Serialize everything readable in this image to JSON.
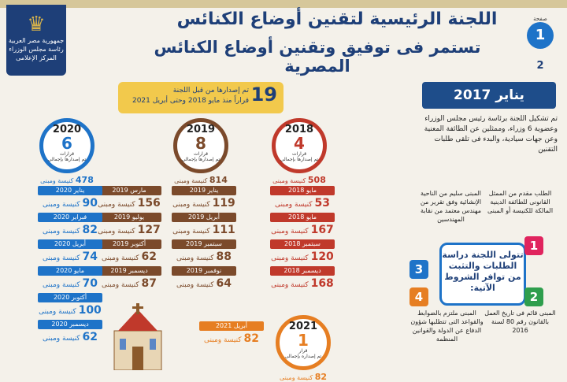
{
  "header": {
    "title_line1": "اللجنة الرئيسية لتقنين أوضاع الكنائس",
    "title_line2": "تستمر فى توفيق وتقنين أوضاع الكنائس المصرية",
    "badge_number": "1",
    "badge_label": "صفحة",
    "badge_page2": "2",
    "logo_line1": "جمهورية مصر العربية",
    "logo_line2": "رئاسة مجلس الوزراء",
    "logo_line3": "المركز الإعلامى"
  },
  "january": {
    "heading": "يناير 2017",
    "text": "تم تشكيل اللجنة برئاسة رئيس مجلس الوزراء وعضوية 6 وزراء، وممثلين عن الطائفة المعنية وعن جهات سيادية، والبدء فى تلقى طلبات التقنين"
  },
  "summary": {
    "number": "19",
    "unit": "قراراً",
    "line1": "تم إصدارها من قبل اللجنة",
    "line2": "منذ مايو 2018 وحتى أبريل 2021"
  },
  "years": [
    {
      "year": "2018",
      "count": "4",
      "unit": "قرارات",
      "caption": "تم إصدارها بإجمالى",
      "total": "508",
      "total_label": "كنيسة ومبنى",
      "color": "#c0392b",
      "months": [
        {
          "m": "مايو 2018",
          "v": "53"
        },
        {
          "m": "مايو 2018",
          "v": "167"
        },
        {
          "m": "سبتمبر 2018",
          "v": "120"
        },
        {
          "m": "ديسمبر 2018",
          "v": "168"
        }
      ]
    },
    {
      "year": "2019",
      "count": "8",
      "unit": "قرارات",
      "caption": "تم إصدارها بإجمالى",
      "total": "814",
      "total_label": "كنيسة ومبنى",
      "color": "#7b4a2b",
      "months": [
        {
          "m": "يناير 2019",
          "v": "119"
        },
        {
          "m": "أبريل 2019",
          "v": "111"
        },
        {
          "m": "سبتمبر 2019",
          "v": "88"
        },
        {
          "m": "نوفمبر 2019",
          "v": "64"
        },
        {
          "m": "مارس 2019",
          "v": "156"
        },
        {
          "m": "يوليو 2019",
          "v": "127"
        },
        {
          "m": "أكتوبر 2019",
          "v": "62"
        },
        {
          "m": "ديسمبر 2019",
          "v": "87"
        }
      ]
    },
    {
      "year": "2020",
      "count": "6",
      "unit": "قرارات",
      "caption": "تم إصدارها بإجمالى",
      "total": "478",
      "total_label": "كنيسة ومبنى",
      "color": "#1e73c8",
      "months": [
        {
          "m": "يناير 2020",
          "v": "90"
        },
        {
          "m": "فبراير 2020",
          "v": "82"
        },
        {
          "m": "أبريل 2020",
          "v": "74"
        },
        {
          "m": "مايو 2020",
          "v": "70"
        },
        {
          "m": "أكتوبر 2020",
          "v": "100"
        },
        {
          "m": "ديسمبر 2020",
          "v": "62"
        }
      ]
    },
    {
      "year": "2021",
      "count": "1",
      "unit": "قرار",
      "caption": "تم إصداره بإجمالى",
      "total": "82",
      "total_label": "كنيسة ومبنى",
      "color": "#e67e22",
      "months": [
        {
          "m": "أبريل 2021",
          "v": "82"
        }
      ]
    }
  ],
  "value_suffix": "كنيسة ومبنى",
  "conditions": {
    "center": "تتولى اللجنة دراسة الطلبات والتثبت من توافر الشروط الآتية:",
    "items": [
      {
        "n": "1",
        "text": "الطلب مقدم من الممثل القانونى للطائفة الدينية المالكة للكنيسة أو المبنى",
        "color": "#e0245e"
      },
      {
        "n": "2",
        "text": "المبنى قائم فى تاريخ العمل بالقانون رقم 80 لسنة 2016",
        "color": "#2e9e4d"
      },
      {
        "n": "3",
        "text": "المبنى سليم من الناحية الإنشائية وفق تقرير من مهندس معتمد من نقابة المهندسين",
        "color": "#1e73c8"
      },
      {
        "n": "4",
        "text": "المبنى ملتزم بالضوابط والقواعد التى تتطلبها شؤون الدفاع عن الدولة والقوانين المنظمة",
        "color": "#e67e22"
      }
    ]
  }
}
